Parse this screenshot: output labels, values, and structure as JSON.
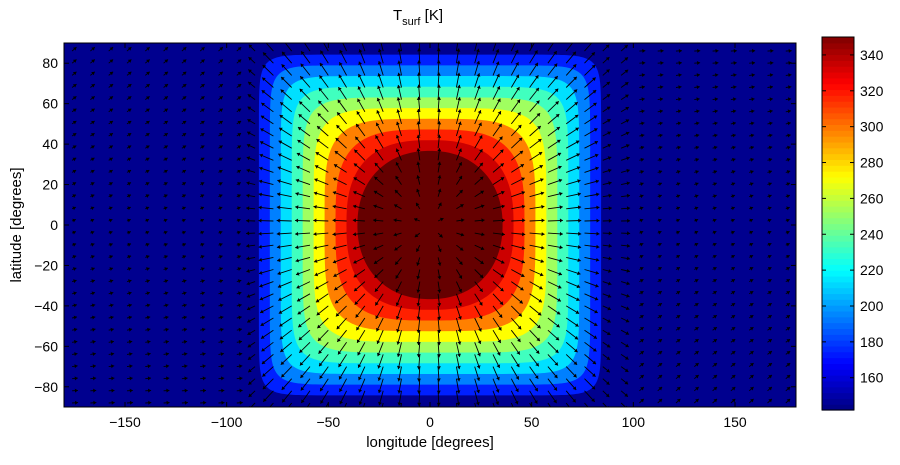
{
  "chart_data": {
    "type": "heatmap",
    "title": {
      "base": "T",
      "sub": "surf",
      "suffix": " [K]"
    },
    "xlabel": "longitude [degrees]",
    "ylabel": "latitude [degrees]",
    "xlim": [
      -180,
      180
    ],
    "ylim": [
      -90,
      90
    ],
    "xticks": [
      -150,
      -100,
      -50,
      0,
      50,
      100,
      150
    ],
    "yticks": [
      -80,
      -60,
      -40,
      -20,
      0,
      20,
      40,
      60,
      80
    ],
    "xtick_labels": [
      "−150",
      "−100",
      "−50",
      "0",
      "50",
      "100",
      "150"
    ],
    "ytick_labels": [
      "−80",
      "−60",
      "−40",
      "−20",
      "0",
      "20",
      "40",
      "60",
      "80"
    ],
    "colormap": "jet",
    "clim": [
      142,
      350
    ],
    "colorbar_ticks": [
      160,
      180,
      200,
      220,
      240,
      260,
      280,
      300,
      320,
      340
    ],
    "colorbar_tick_labels": [
      "160",
      "180",
      "200",
      "220",
      "240",
      "260",
      "280",
      "300",
      "320",
      "340"
    ],
    "field": {
      "description": "substellar hot spot, contour-filled",
      "night_side_value": 142,
      "substellar_value": 350,
      "substellar_point": [
        0,
        0
      ],
      "contour_levels": [
        142,
        160,
        180,
        200,
        220,
        240,
        260,
        280,
        300,
        320,
        340
      ],
      "level_colors": [
        "#00008f",
        "#0020ff",
        "#0080ff",
        "#00e0ff",
        "#40ffbf",
        "#a0ff60",
        "#ffff00",
        "#ff8000",
        "#ff2000",
        "#cc0000",
        "#660000"
      ]
    },
    "vector_field": {
      "description": "surface wind arrows diverging radially from the substellar point",
      "color": "#000000"
    },
    "grid": false,
    "colorbar": "right"
  }
}
